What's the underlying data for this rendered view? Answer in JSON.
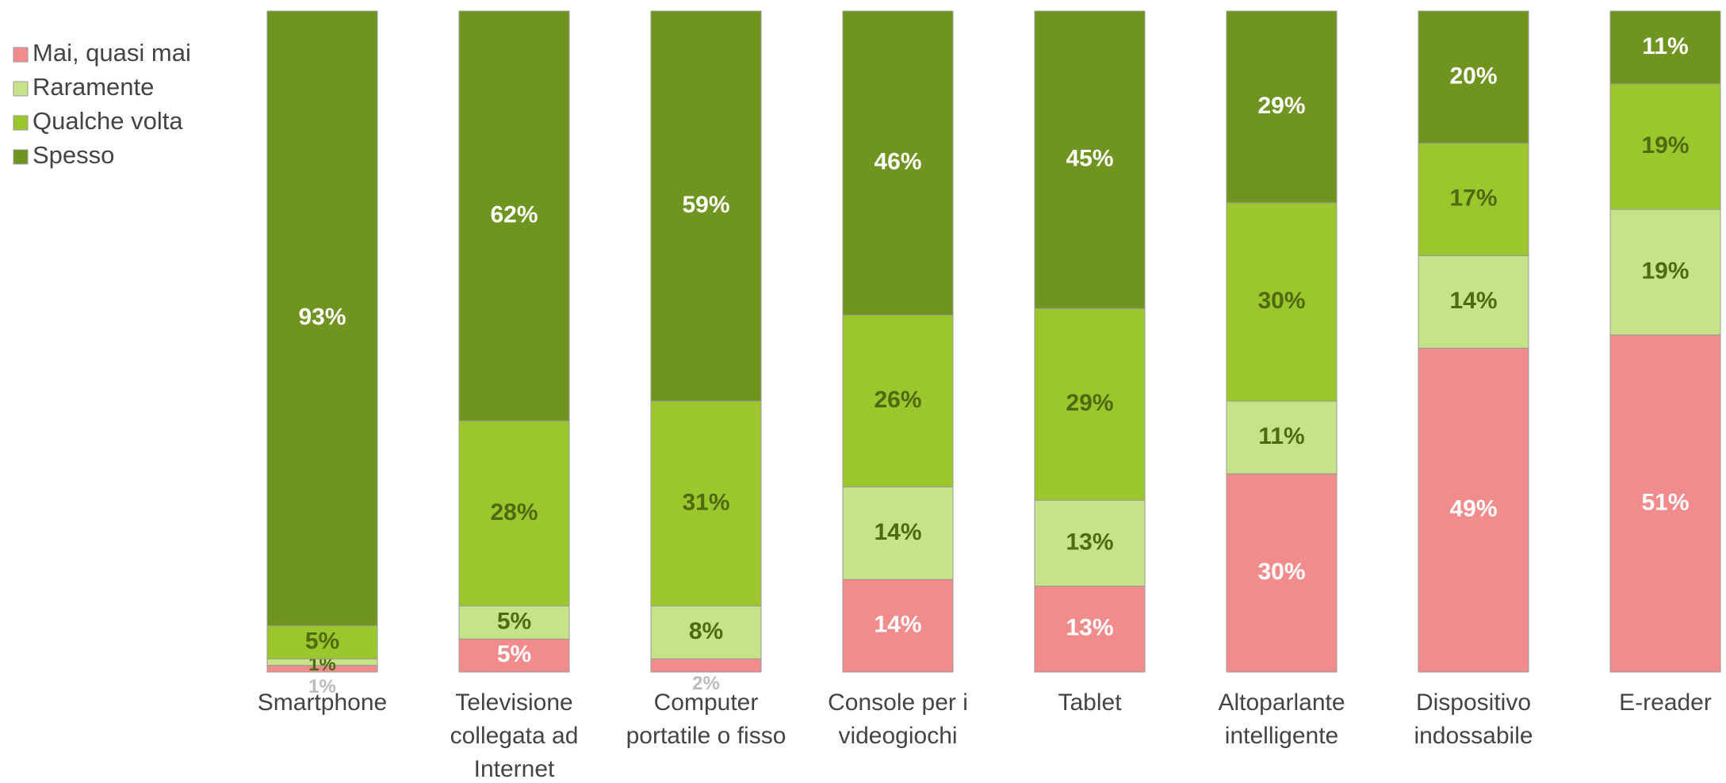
{
  "chart_data": {
    "type": "stacked_bar",
    "categories": [
      "Smartphone",
      "Televisione collegata ad Internet",
      "Computer portatile o fisso",
      "Console per i videogiochi",
      "Tablet",
      "Altoparlante intelligente",
      "Dispositivo indossabile",
      "E-reader"
    ],
    "series": [
      {
        "name": "Mai, quasi mai",
        "color": "#f28b8b",
        "values": [
          1,
          5,
          2,
          14,
          13,
          30,
          49,
          51
        ],
        "value_labels": [
          "1%",
          "5%",
          "2%",
          "14%",
          "13%",
          "30%",
          "49%",
          "51%"
        ]
      },
      {
        "name": "Raramente",
        "color": "#c6e387",
        "values": [
          1,
          5,
          8,
          14,
          13,
          11,
          14,
          19
        ],
        "value_labels": [
          "1%",
          "5%",
          "8%",
          "14%",
          "13%",
          "11%",
          "14%",
          "19%"
        ]
      },
      {
        "name": "Qualche volta",
        "color": "#9bc72d",
        "values": [
          5,
          28,
          31,
          26,
          29,
          30,
          17,
          19
        ],
        "value_labels": [
          "5%",
          "28%",
          "31%",
          "26%",
          "29%",
          "30%",
          "17%",
          "19%"
        ]
      },
      {
        "name": "Spesso",
        "color": "#6f941f",
        "values": [
          93,
          62,
          59,
          46,
          45,
          29,
          20,
          11
        ],
        "value_labels": [
          "93%",
          "62%",
          "59%",
          "46%",
          "45%",
          "29%",
          "20%",
          "11%"
        ]
      }
    ],
    "legend": "top-left"
  }
}
